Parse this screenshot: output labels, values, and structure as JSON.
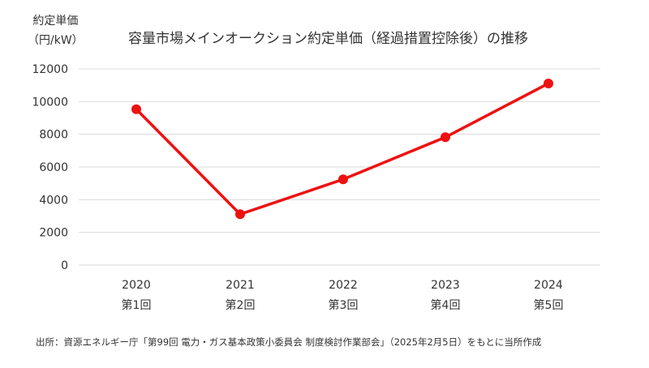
{
  "chart_data": {
    "type": "line",
    "title": "容量市場メインオークション約定単価（経過措置控除後）の推移",
    "ylabel": [
      "約定単価",
      "（円/kW）"
    ],
    "xlabel": "",
    "ylim": [
      0,
      12000
    ],
    "yticks": [
      0,
      2000,
      4000,
      6000,
      8000,
      10000,
      12000
    ],
    "categories": [
      {
        "year": "2020",
        "round": "第1回"
      },
      {
        "year": "2021",
        "round": "第2回"
      },
      {
        "year": "2022",
        "round": "第3回"
      },
      {
        "year": "2023",
        "round": "第4回"
      },
      {
        "year": "2024",
        "round": "第5回"
      }
    ],
    "series": [
      {
        "name": "約定単価",
        "values": [
          9534,
          3109,
          5242,
          7822,
          11110
        ],
        "color": "#ee1111"
      }
    ],
    "grid": true,
    "legend": "none"
  },
  "source": "出所：資源エネルギー庁「第99回 電力・ガス基本政策小委員会 制度検討作業部会」（2025年2月5日）をもとに当所作成",
  "colors": {
    "line": "#ee1111",
    "grid": "#d9d9d9",
    "text": "#333333"
  }
}
